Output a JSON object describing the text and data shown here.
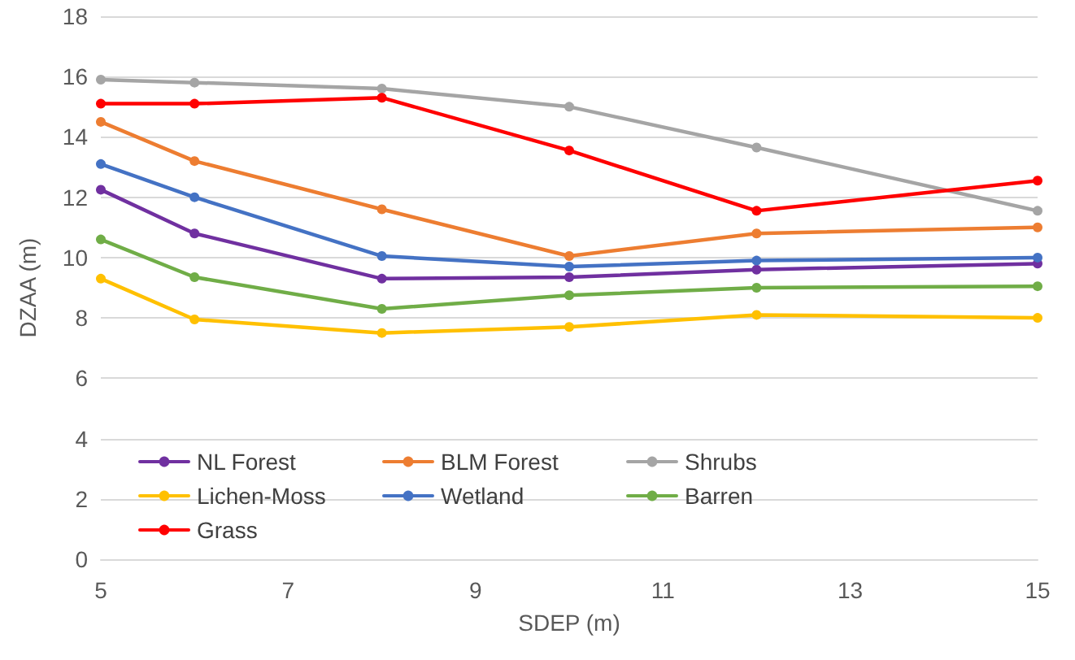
{
  "chart_data": {
    "type": "line",
    "xlabel": "SDEP (m)",
    "ylabel": "DZAA (m)",
    "x": [
      5,
      6,
      8,
      10,
      12,
      15
    ],
    "series": [
      {
        "name": "NL Forest",
        "color": "#7030a0",
        "values": [
          12.25,
          10.8,
          9.3,
          9.35,
          9.6,
          9.8
        ]
      },
      {
        "name": "BLM Forest",
        "color": "#ed7d31",
        "values": [
          14.5,
          13.2,
          11.6,
          10.05,
          10.8,
          11.0
        ]
      },
      {
        "name": "Shrubs",
        "color": "#a5a5a5",
        "values": [
          15.9,
          15.8,
          15.6,
          15.0,
          13.65,
          11.55
        ]
      },
      {
        "name": "Lichen-Moss",
        "color": "#ffc000",
        "values": [
          9.3,
          7.95,
          7.5,
          7.7,
          8.1,
          8.0
        ]
      },
      {
        "name": "Wetland",
        "color": "#4472c4",
        "values": [
          13.1,
          12.0,
          10.05,
          9.7,
          9.9,
          10.0
        ]
      },
      {
        "name": "Barren",
        "color": "#70ad47",
        "values": [
          10.6,
          9.35,
          8.3,
          8.75,
          9.0,
          9.05
        ]
      },
      {
        "name": "Grass",
        "color": "#ff0000",
        "values": [
          15.1,
          15.1,
          15.3,
          13.55,
          11.55,
          12.55
        ]
      }
    ],
    "xlim": [
      5,
      15
    ],
    "xticks": [
      5,
      7,
      9,
      11,
      13,
      15
    ],
    "ylim": [
      0,
      18
    ],
    "yticks": [
      0,
      2,
      4,
      6,
      8,
      10,
      12,
      14,
      16,
      18
    ],
    "grid": "y",
    "legend": "bottom left",
    "marker": "circle",
    "line_style": "solid"
  }
}
